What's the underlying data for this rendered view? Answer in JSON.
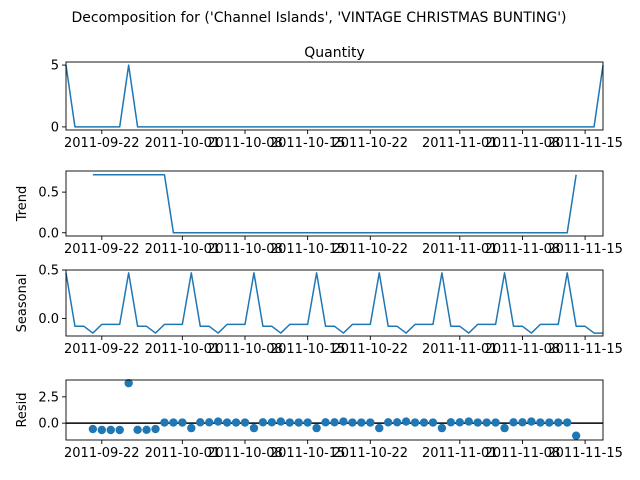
{
  "figure": {
    "suptitle": "Decomposition for ('Channel Islands', 'VINTAGE CHRISTMAS BUNTING')"
  },
  "colors": {
    "line": "#1f77b4",
    "marker": "#1f77b4",
    "axis": "#000000",
    "zero_line": "#000000"
  },
  "chart_data": [
    {
      "type": "line",
      "title": "Quantity",
      "ylabel": "",
      "xlim": [
        "2011-09-18",
        "2011-11-17"
      ],
      "ylim": [
        -0.25,
        5.25
      ],
      "x_ticks": [
        "2011-09-22",
        "2011-10-01",
        "2011-10-08",
        "2011-10-15",
        "2011-10-22",
        "2011-11-01",
        "2011-11-08",
        "2011-11-15"
      ],
      "y_ticks": [
        0,
        5
      ],
      "series": [
        {
          "x": [
            "2011-09-18",
            "2011-09-19",
            "2011-09-20",
            "2011-09-21",
            "2011-09-22",
            "2011-09-23",
            "2011-09-24",
            "2011-09-25",
            "2011-09-26",
            "2011-09-27",
            "2011-09-28",
            "2011-09-29",
            "2011-09-30",
            "2011-10-01",
            "2011-10-02",
            "2011-10-03",
            "2011-10-04",
            "2011-10-05",
            "2011-10-06",
            "2011-10-07",
            "2011-10-08",
            "2011-10-09",
            "2011-10-10",
            "2011-10-11",
            "2011-10-12",
            "2011-10-13",
            "2011-10-14",
            "2011-10-15",
            "2011-10-16",
            "2011-10-17",
            "2011-10-18",
            "2011-10-19",
            "2011-10-20",
            "2011-10-21",
            "2011-10-22",
            "2011-10-23",
            "2011-10-24",
            "2011-10-25",
            "2011-10-26",
            "2011-10-27",
            "2011-10-28",
            "2011-10-29",
            "2011-10-30",
            "2011-10-31",
            "2011-11-01",
            "2011-11-02",
            "2011-11-03",
            "2011-11-04",
            "2011-11-05",
            "2011-11-06",
            "2011-11-07",
            "2011-11-08",
            "2011-11-09",
            "2011-11-10",
            "2011-11-11",
            "2011-11-12",
            "2011-11-13",
            "2011-11-14",
            "2011-11-15",
            "2011-11-16",
            "2011-11-17"
          ],
          "values": [
            5,
            0,
            0,
            0,
            0,
            0,
            0,
            5,
            0,
            0,
            0,
            0,
            0,
            0,
            0,
            0,
            0,
            0,
            0,
            0,
            0,
            0,
            0,
            0,
            0,
            0,
            0,
            0,
            0,
            0,
            0,
            0,
            0,
            0,
            0,
            0,
            0,
            0,
            0,
            0,
            0,
            0,
            0,
            0,
            0,
            0,
            0,
            0,
            0,
            0,
            0,
            0,
            0,
            0,
            0,
            0,
            0,
            0,
            0,
            0,
            5
          ]
        }
      ]
    },
    {
      "type": "line",
      "title": "",
      "ylabel": "Trend",
      "xlim": [
        "2011-09-18",
        "2011-11-17"
      ],
      "ylim": [
        -0.04,
        0.76
      ],
      "x_ticks": [
        "2011-09-22",
        "2011-10-01",
        "2011-10-08",
        "2011-10-15",
        "2011-10-22",
        "2011-11-01",
        "2011-11-08",
        "2011-11-15"
      ],
      "y_ticks": [
        0.0,
        0.5
      ],
      "series": [
        {
          "x": [
            "2011-09-21",
            "2011-09-29",
            "2011-09-30",
            "2011-11-13",
            "2011-11-14"
          ],
          "values": [
            0.714,
            0.714,
            0,
            0,
            0.714
          ]
        }
      ]
    },
    {
      "type": "line",
      "title": "",
      "ylabel": "Seasonal",
      "xlim": [
        "2011-09-18",
        "2011-11-17"
      ],
      "ylim": [
        -0.18,
        0.5
      ],
      "x_ticks": [
        "2011-09-22",
        "2011-10-01",
        "2011-10-08",
        "2011-10-15",
        "2011-10-22",
        "2011-11-01",
        "2011-11-08",
        "2011-11-15"
      ],
      "y_ticks": [
        0.0,
        0.5
      ],
      "series": [
        {
          "x": [
            "2011-09-18",
            "2011-09-19",
            "2011-09-20",
            "2011-09-21",
            "2011-09-22",
            "2011-09-23",
            "2011-09-24",
            "2011-09-25",
            "2011-09-26",
            "2011-09-27",
            "2011-09-28",
            "2011-09-29",
            "2011-09-30",
            "2011-10-01",
            "2011-10-02",
            "2011-10-03",
            "2011-10-04",
            "2011-10-05",
            "2011-10-06",
            "2011-10-07",
            "2011-10-08",
            "2011-10-09",
            "2011-10-10",
            "2011-10-11",
            "2011-10-12",
            "2011-10-13",
            "2011-10-14",
            "2011-10-15",
            "2011-10-16",
            "2011-10-17",
            "2011-10-18",
            "2011-10-19",
            "2011-10-20",
            "2011-10-21",
            "2011-10-22",
            "2011-10-23",
            "2011-10-24",
            "2011-10-25",
            "2011-10-26",
            "2011-10-27",
            "2011-10-28",
            "2011-10-29",
            "2011-10-30",
            "2011-10-31",
            "2011-11-01",
            "2011-11-02",
            "2011-11-03",
            "2011-11-04",
            "2011-11-05",
            "2011-11-06",
            "2011-11-07",
            "2011-11-08",
            "2011-11-09",
            "2011-11-10",
            "2011-11-11",
            "2011-11-12",
            "2011-11-13",
            "2011-11-14",
            "2011-11-15",
            "2011-11-16",
            "2011-11-17"
          ],
          "values": [
            0.47,
            -0.08,
            -0.08,
            -0.15,
            -0.06,
            -0.06,
            -0.06,
            0.47,
            -0.08,
            -0.08,
            -0.15,
            -0.06,
            -0.06,
            -0.06,
            0.47,
            -0.08,
            -0.08,
            -0.15,
            -0.06,
            -0.06,
            -0.06,
            0.47,
            -0.08,
            -0.08,
            -0.15,
            -0.06,
            -0.06,
            -0.06,
            0.47,
            -0.08,
            -0.08,
            -0.15,
            -0.06,
            -0.06,
            -0.06,
            0.47,
            -0.08,
            -0.08,
            -0.15,
            -0.06,
            -0.06,
            -0.06,
            0.47,
            -0.08,
            -0.08,
            -0.15,
            -0.06,
            -0.06,
            -0.06,
            0.47,
            -0.08,
            -0.08,
            -0.15,
            -0.06,
            -0.06,
            -0.06,
            0.47,
            -0.08,
            -0.08,
            -0.15,
            -0.15
          ]
        }
      ]
    },
    {
      "type": "scatter",
      "title": "",
      "ylabel": "Resid",
      "xlim": [
        "2011-09-18",
        "2011-11-17"
      ],
      "ylim": [
        -1.6,
        4.1
      ],
      "x_ticks": [
        "2011-09-22",
        "2011-10-01",
        "2011-10-08",
        "2011-10-15",
        "2011-10-22",
        "2011-11-01",
        "2011-11-08",
        "2011-11-15"
      ],
      "y_ticks": [
        0.0,
        2.5
      ],
      "zero_line": true,
      "series": [
        {
          "x": [
            "2011-09-21",
            "2011-09-22",
            "2011-09-23",
            "2011-09-24",
            "2011-09-25",
            "2011-09-26",
            "2011-09-27",
            "2011-09-28",
            "2011-09-29",
            "2011-09-30",
            "2011-10-01",
            "2011-10-02",
            "2011-10-03",
            "2011-10-04",
            "2011-10-05",
            "2011-10-06",
            "2011-10-07",
            "2011-10-08",
            "2011-10-09",
            "2011-10-10",
            "2011-10-11",
            "2011-10-12",
            "2011-10-13",
            "2011-10-14",
            "2011-10-15",
            "2011-10-16",
            "2011-10-17",
            "2011-10-18",
            "2011-10-19",
            "2011-10-20",
            "2011-10-21",
            "2011-10-22",
            "2011-10-23",
            "2011-10-24",
            "2011-10-25",
            "2011-10-26",
            "2011-10-27",
            "2011-10-28",
            "2011-10-29",
            "2011-10-30",
            "2011-10-31",
            "2011-11-01",
            "2011-11-02",
            "2011-11-03",
            "2011-11-04",
            "2011-11-05",
            "2011-11-06",
            "2011-11-07",
            "2011-11-08",
            "2011-11-09",
            "2011-11-10",
            "2011-11-11",
            "2011-11-12",
            "2011-11-13",
            "2011-11-14"
          ],
          "values": [
            -0.56,
            -0.65,
            -0.65,
            -0.65,
            3.8,
            -0.63,
            -0.63,
            -0.56,
            0.06,
            0.06,
            0.06,
            -0.47,
            0.08,
            0.08,
            0.15,
            0.06,
            0.06,
            0.06,
            -0.47,
            0.08,
            0.08,
            0.15,
            0.06,
            0.06,
            0.06,
            -0.47,
            0.08,
            0.08,
            0.15,
            0.06,
            0.06,
            0.06,
            -0.47,
            0.08,
            0.08,
            0.15,
            0.06,
            0.06,
            0.06,
            -0.47,
            0.08,
            0.08,
            0.15,
            0.06,
            0.06,
            0.06,
            -0.47,
            0.08,
            0.08,
            0.15,
            0.06,
            0.06,
            0.06,
            0.06,
            -1.19
          ]
        }
      ]
    }
  ]
}
